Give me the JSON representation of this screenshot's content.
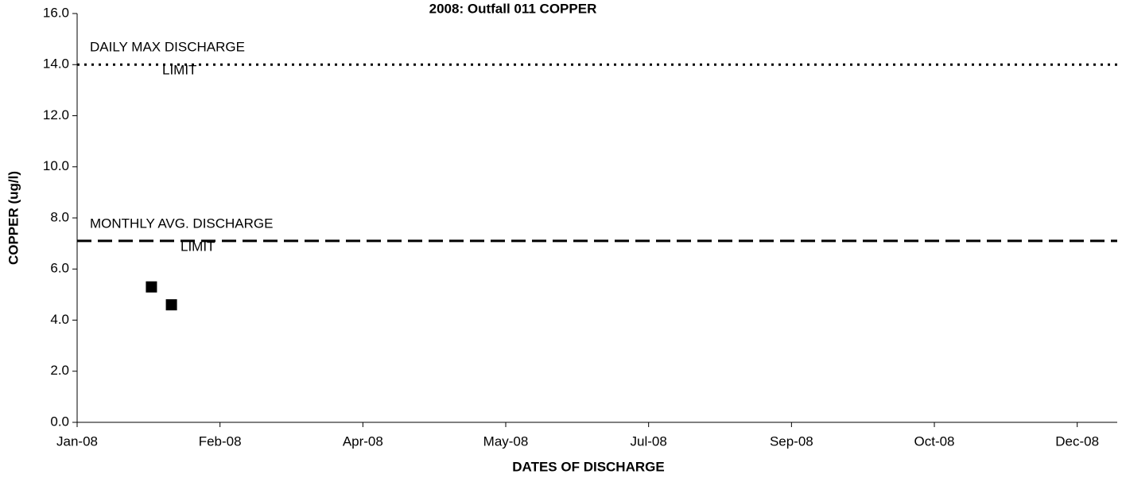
{
  "chart_data": {
    "type": "scatter",
    "title": "2008: Outfall 011 COPPER",
    "x_label": "DATES OF DISCHARGE",
    "y_label": "COPPER (ug/l)",
    "xlim": [
      39448,
      39812
    ],
    "xticks": [
      {
        "value": 39448,
        "label": "Jan-08"
      },
      {
        "value": 39498,
        "label": "Feb-08"
      },
      {
        "value": 39548,
        "label": "Apr-08"
      },
      {
        "value": 39598,
        "label": "May-08"
      },
      {
        "value": 39648,
        "label": "Jul-08"
      },
      {
        "value": 39698,
        "label": "Sep-08"
      },
      {
        "value": 39748,
        "label": "Oct-08"
      },
      {
        "value": 39798,
        "label": "Dec-08"
      }
    ],
    "ylim": [
      0,
      16
    ],
    "yticks": [
      {
        "value": 0,
        "label": "0.0"
      },
      {
        "value": 2,
        "label": "2.0"
      },
      {
        "value": 4,
        "label": "4.0"
      },
      {
        "value": 6,
        "label": "6.0"
      },
      {
        "value": 8,
        "label": "8.0"
      },
      {
        "value": 10,
        "label": "10.0"
      },
      {
        "value": 12,
        "label": "12.0"
      },
      {
        "value": 14,
        "label": "14.0"
      },
      {
        "value": 16,
        "label": "16.0"
      }
    ],
    "series": [
      {
        "color": "#000000",
        "marker": "square",
        "x": [
          39474,
          39481
        ],
        "values": [
          5.3,
          4.6
        ]
      }
    ],
    "reference_lines": [
      {
        "label": [
          "DAILY MAX DISCHARGE",
          "LIMIT"
        ],
        "value": 14,
        "style": "dotted",
        "color": "#000000"
      },
      {
        "label": [
          "MONTHLY AVG. DISCHARGE",
          "LIMIT"
        ],
        "value": 7.1,
        "style": "dashed",
        "color": "#000000"
      }
    ]
  }
}
